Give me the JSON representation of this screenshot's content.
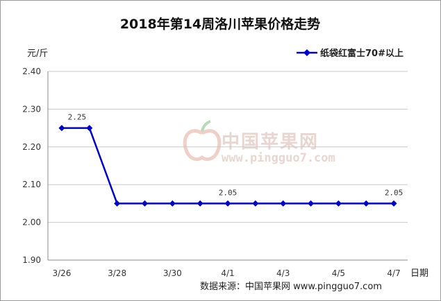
{
  "chart_data": {
    "type": "line",
    "title": "2018年第14周洛川苹果价格走势",
    "ylabel": "元/斤",
    "xlabel": "日期",
    "ylim": [
      1.9,
      2.4
    ],
    "yticks": [
      "1.90",
      "2.00",
      "2.10",
      "2.20",
      "2.30",
      "2.40"
    ],
    "categories": [
      "3/26",
      "3/27",
      "3/28",
      "3/29",
      "3/30",
      "3/31",
      "4/1",
      "4/2",
      "4/3",
      "4/4",
      "4/5",
      "4/6",
      "4/7"
    ],
    "xtick_labels": [
      "3/26",
      "",
      "3/28",
      "",
      "3/30",
      "",
      "4/1",
      "",
      "4/3",
      "",
      "4/5",
      "",
      "4/7"
    ],
    "series": [
      {
        "name": "纸袋红富士70#以上",
        "color": "#0000cc",
        "values": [
          2.25,
          2.25,
          2.05,
          2.05,
          2.05,
          2.05,
          2.05,
          2.05,
          2.05,
          2.05,
          2.05,
          2.05,
          2.05
        ]
      }
    ],
    "data_labels": [
      {
        "index": 0,
        "text": "2.25"
      },
      {
        "index": 6,
        "text": "2.05"
      },
      {
        "index": 12,
        "text": "2.05"
      }
    ],
    "legend": "top-right",
    "grid": true
  },
  "source": "数据来源：中国苹果网 www.pingguo7.com",
  "watermark": {
    "text_cn": "中国苹果网",
    "text_en": "www.pingguo7.com"
  }
}
